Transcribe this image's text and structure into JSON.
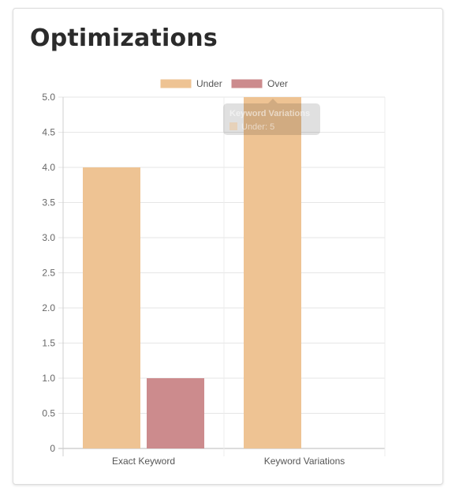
{
  "card": {
    "title": "Optimizations"
  },
  "chart_data": {
    "type": "bar",
    "categories": [
      "Exact Keyword",
      "Keyword Variations"
    ],
    "series": [
      {
        "name": "Under",
        "values": [
          4,
          5
        ],
        "color": "#eec393"
      },
      {
        "name": "Over",
        "values": [
          1,
          0
        ],
        "color": "#cc8b8d"
      }
    ],
    "ylim": [
      0,
      5
    ],
    "yticks": [
      "0",
      "0.5",
      "1.0",
      "1.5",
      "2.0",
      "2.5",
      "3.0",
      "3.5",
      "4.0",
      "4.5",
      "5.0"
    ],
    "legend_position": "top",
    "grid": true,
    "tooltip": {
      "title": "Keyword Variations",
      "label": "Under: 5"
    }
  }
}
